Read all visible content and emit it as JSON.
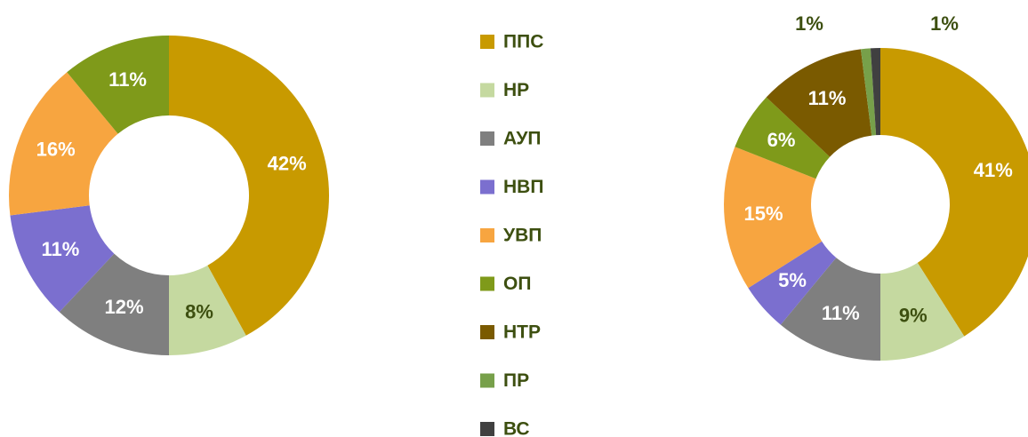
{
  "chart_data": [
    {
      "type": "pie",
      "categories": [
        "ППС",
        "НР",
        "АУП",
        "НВП",
        "УВП",
        "ОП"
      ],
      "values": [
        42,
        8,
        12,
        11,
        16,
        11
      ],
      "value_labels": [
        "42%",
        "8%",
        "12%",
        "11%",
        "16%",
        "11%"
      ],
      "colors": [
        "#c89a00",
        "#c5d9a0",
        "#7f7f7f",
        "#7b6fcf",
        "#f7a540",
        "#7f9a1a"
      ],
      "label_colors": [
        "#ffffff",
        "#3d4f10",
        "#ffffff",
        "#ffffff",
        "#ffffff",
        "#ffffff"
      ]
    },
    {
      "type": "pie",
      "categories": [
        "ППС",
        "НР",
        "АУП",
        "НВП",
        "УВП",
        "ОП",
        "НТР",
        "ПР",
        "ВС"
      ],
      "values": [
        41,
        9,
        11,
        5,
        15,
        6,
        11,
        1,
        1
      ],
      "value_labels": [
        "41%",
        "9%",
        "11%",
        "5%",
        "15%",
        "6%",
        "11%",
        "1%",
        "1%"
      ],
      "colors": [
        "#c89a00",
        "#c5d9a0",
        "#7f7f7f",
        "#7b6fcf",
        "#f7a540",
        "#7f9a1a",
        "#7a5a00",
        "#77a04a",
        "#404040"
      ],
      "label_colors": [
        "#ffffff",
        "#3d4f10",
        "#ffffff",
        "#ffffff",
        "#ffffff",
        "#ffffff",
        "#ffffff",
        "#3d4f10",
        "#3d4f10"
      ]
    }
  ]
}
